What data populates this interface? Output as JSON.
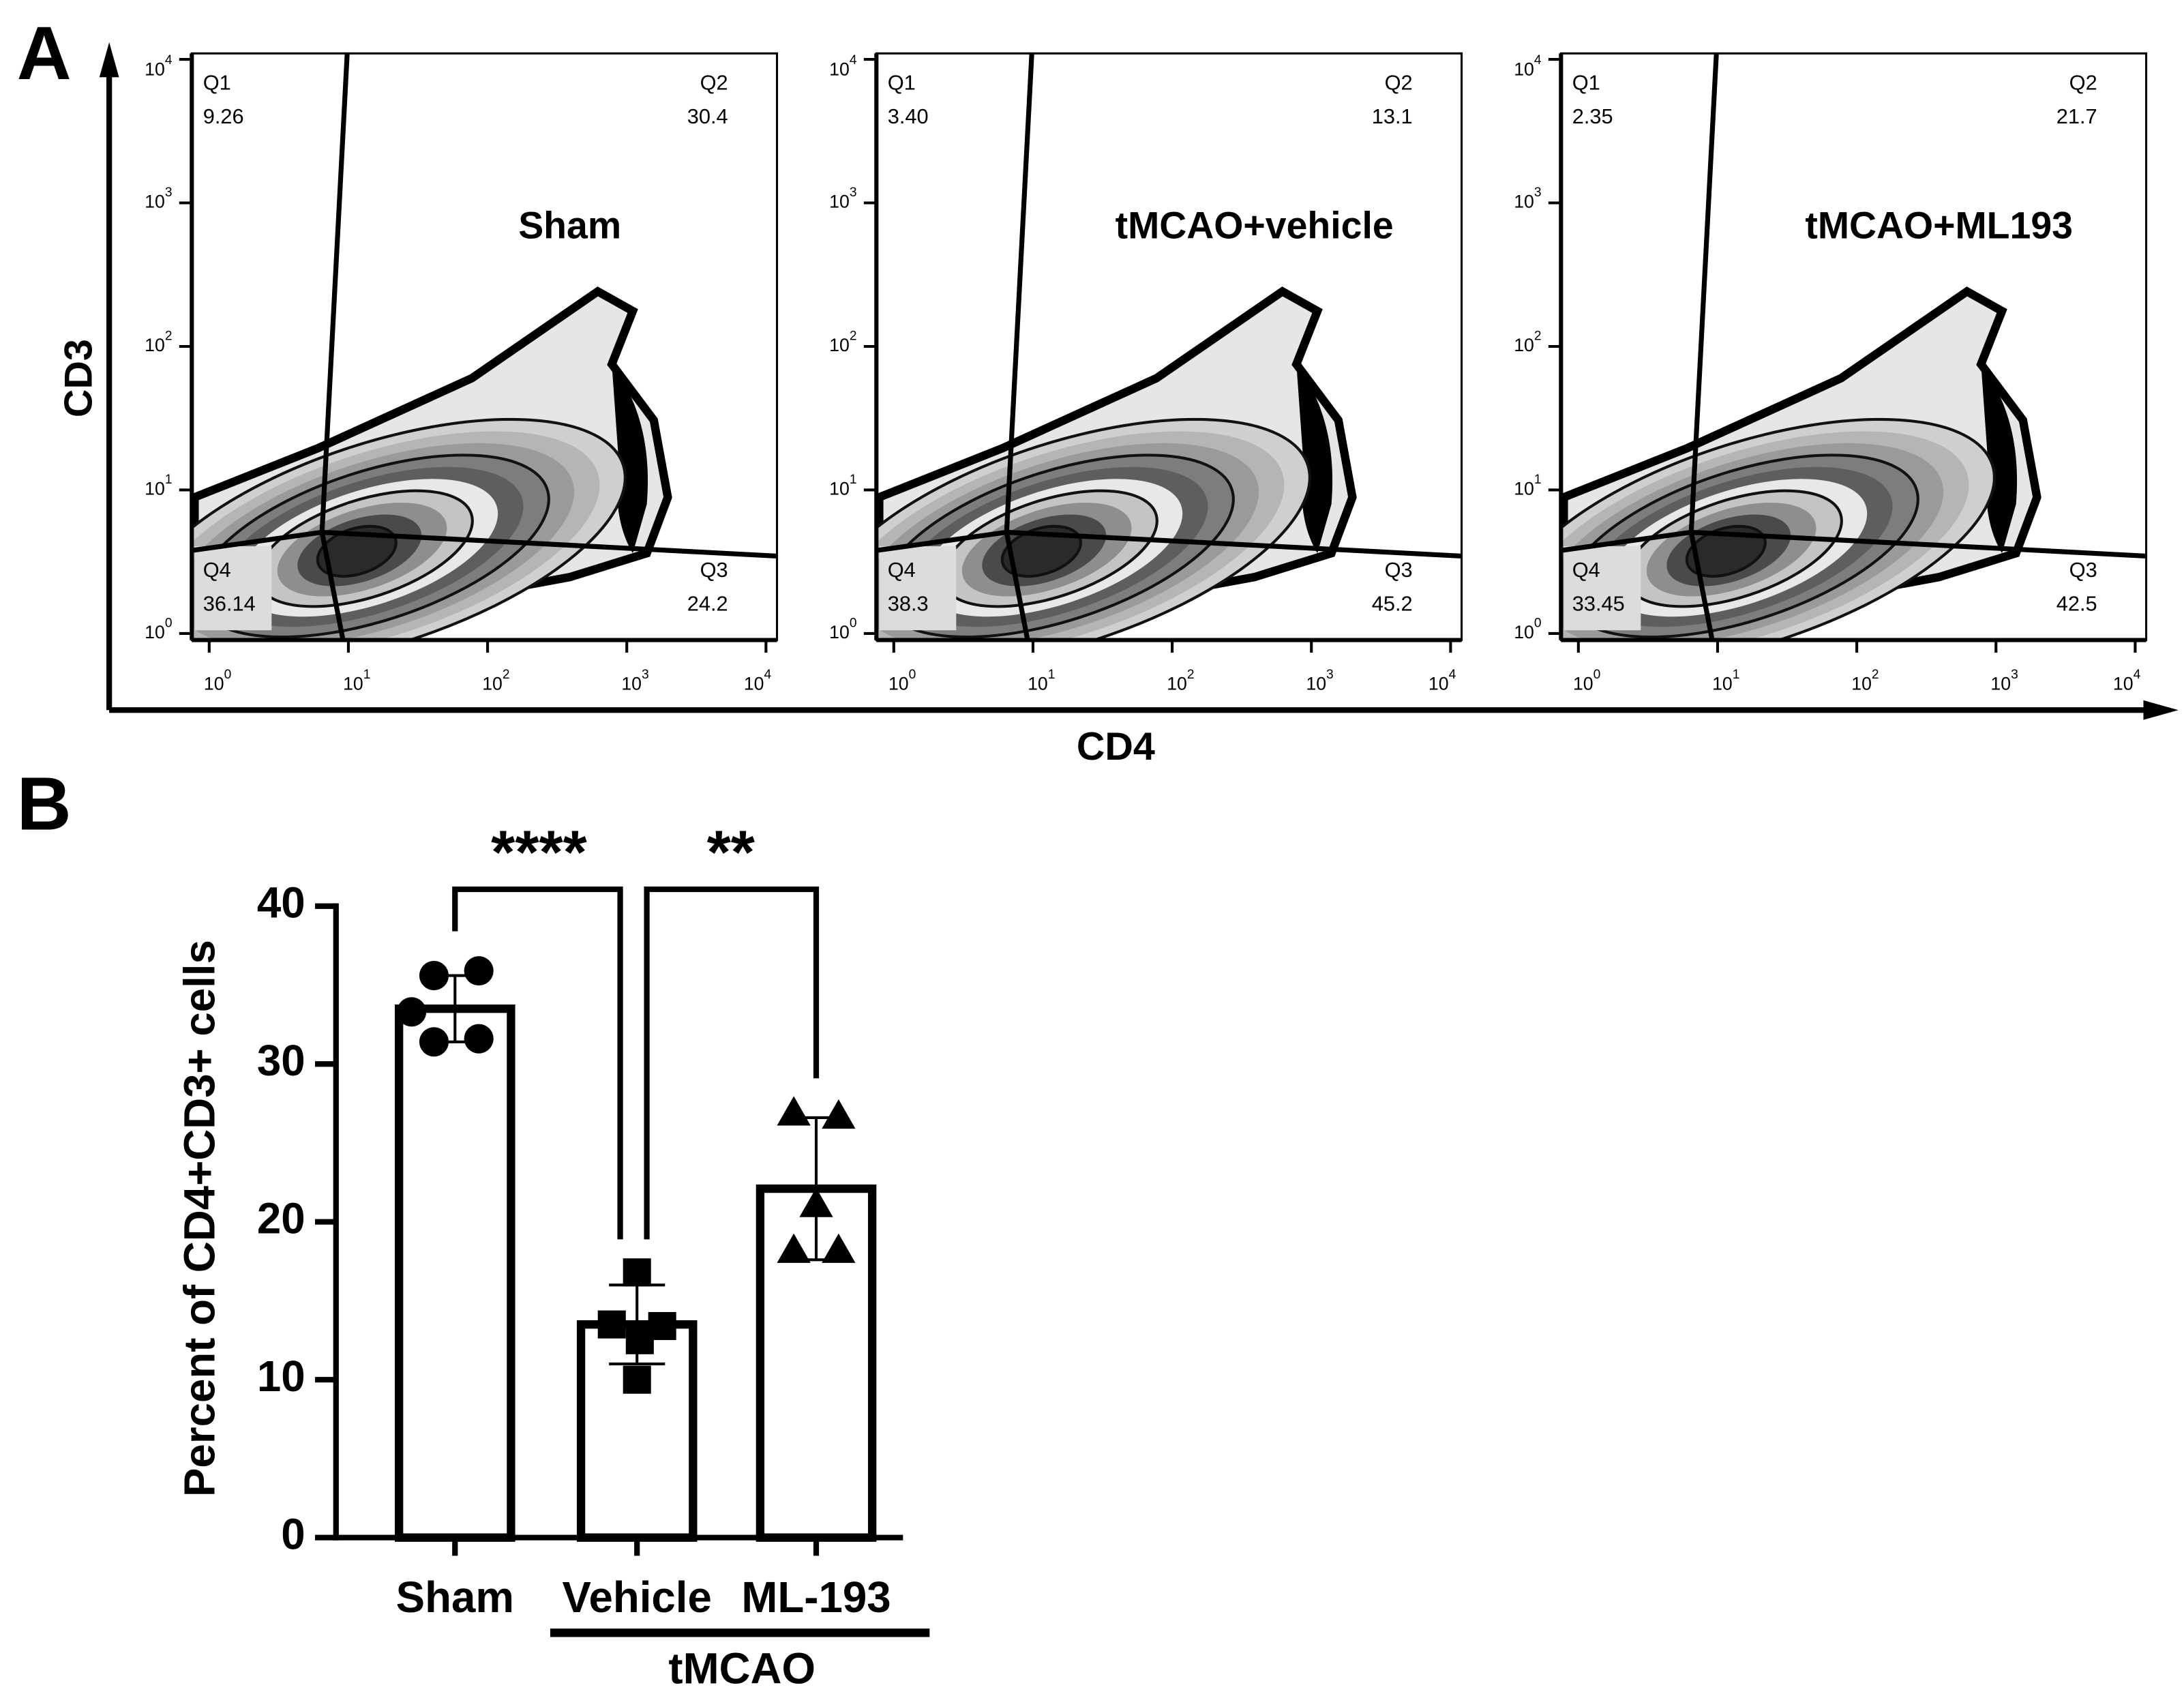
{
  "chart_data": [
    {
      "type": "flow",
      "panel_label": "A",
      "ylabel": "CD3",
      "xlabel": "CD4",
      "log_scale": true,
      "xlim": [
        0.75,
        12000
      ],
      "ylim": [
        0.9,
        11000
      ],
      "xticks": [
        {
          "value": 1,
          "label": "10",
          "sup": "0"
        },
        {
          "value": 10,
          "label": "10",
          "sup": "1"
        },
        {
          "value": 100,
          "label": "10",
          "sup": "2"
        },
        {
          "value": 1000,
          "label": "10",
          "sup": "3"
        },
        {
          "value": 10000,
          "label": "10",
          "sup": "4"
        }
      ],
      "yticks": [
        {
          "value": 1,
          "label": "10",
          "sup": "0"
        },
        {
          "value": 10,
          "label": "10",
          "sup": "1"
        },
        {
          "value": 100,
          "label": "10",
          "sup": "2"
        },
        {
          "value": 1000,
          "label": "10",
          "sup": "3"
        },
        {
          "value": 10000,
          "label": "10",
          "sup": "4"
        }
      ],
      "plots": [
        {
          "title": "Sham",
          "quadrants": [
            {
              "name": "Q1",
              "value": 9.26
            },
            {
              "name": "Q2",
              "value": 30.4
            },
            {
              "name": "Q3",
              "value": 24.2
            },
            {
              "name": "Q4",
              "value": 36.14
            }
          ]
        },
        {
          "title": "tMCAO+vehicle",
          "quadrants": [
            {
              "name": "Q1",
              "value": 3.4,
              "label": "3.40"
            },
            {
              "name": "Q2",
              "value": 13.1
            },
            {
              "name": "Q3",
              "value": 45.2
            },
            {
              "name": "Q4",
              "value": 38.3
            }
          ]
        },
        {
          "title": "tMCAO+ML193",
          "quadrants": [
            {
              "name": "Q1",
              "value": 2.35
            },
            {
              "name": "Q2",
              "value": 21.7
            },
            {
              "name": "Q3",
              "value": 42.5
            },
            {
              "name": "Q4",
              "value": 33.45
            }
          ]
        }
      ]
    },
    {
      "type": "bar",
      "panel_label": "B",
      "ylabel": "Percent of CD4+CD3+ cells",
      "categories": [
        "Sham",
        "Vehicle",
        "ML-193"
      ],
      "group_label": "tMCAO",
      "values": [
        33.5,
        13.5,
        22.1
      ],
      "errors": [
        2.1,
        2.5,
        4.5
      ],
      "points": [
        [
          35.6,
          35.9,
          33.3,
          31.4,
          31.6
        ],
        [
          16.8,
          13.5,
          13.4,
          12.5,
          10.0
        ],
        [
          26.9,
          26.7,
          21.1,
          18.2,
          18.2
        ]
      ],
      "markers": [
        "circle",
        "square",
        "triangle"
      ],
      "color": "#000000",
      "annotations": [
        "****",
        "**"
      ],
      "ylim": [
        0,
        40
      ],
      "yticks": [
        0,
        10,
        20,
        30,
        40
      ]
    }
  ]
}
